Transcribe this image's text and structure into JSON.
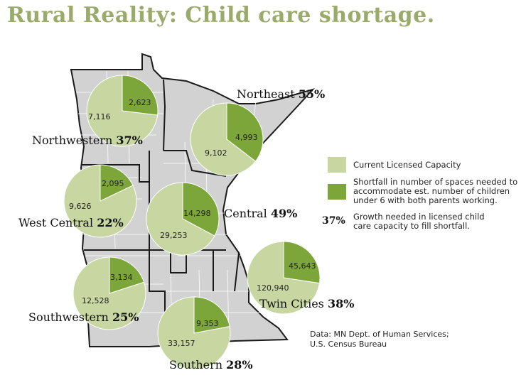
{
  "title": "Rural Reality: Child care shortage.",
  "colors": {
    "capacity": "#c8d7a2",
    "shortfall": "#7ca63a",
    "state_fill": "#d2d2d2",
    "title": "#9aaa6a"
  },
  "legend": {
    "capacity_label": "Current Licensed Capacity",
    "shortfall_label": "Shortfall in number of spaces needed to accommodate est. number of children under 6 with both parents working.",
    "growth_pct": "37%",
    "growth_label": "Growth needed in licensed child care capacity to fill shortfall."
  },
  "source": "Data: MN Dept. of Human Services;\nU.S. Census Bureau",
  "chart_data": {
    "type": "pie",
    "series": [
      {
        "name": "Northwestern",
        "pct": "37%",
        "capacity": 7116,
        "shortfall": 2623,
        "capacity_label": "7,116",
        "shortfall_label": "2,623"
      },
      {
        "name": "Northeast",
        "pct": "55%",
        "capacity": 9102,
        "shortfall": 4993,
        "capacity_label": "9,102",
        "shortfall_label": "4,993"
      },
      {
        "name": "West Central",
        "pct": "22%",
        "capacity": 9626,
        "shortfall": 2095,
        "capacity_label": "9,626",
        "shortfall_label": "2,095"
      },
      {
        "name": "Central",
        "pct": "49%",
        "capacity": 29253,
        "shortfall": 14298,
        "capacity_label": "29,253",
        "shortfall_label": "14,298"
      },
      {
        "name": "Southwestern",
        "pct": "25%",
        "capacity": 12528,
        "shortfall": 3134,
        "capacity_label": "12,528",
        "shortfall_label": "3,134"
      },
      {
        "name": "Twin Cities",
        "pct": "38%",
        "capacity": 120940,
        "shortfall": 45643,
        "capacity_label": "120,940",
        "shortfall_label": "45,643"
      },
      {
        "name": "Southern",
        "pct": "28%",
        "capacity": 33157,
        "shortfall": 9353,
        "capacity_label": "33,157",
        "shortfall_label": "9,353"
      }
    ]
  }
}
